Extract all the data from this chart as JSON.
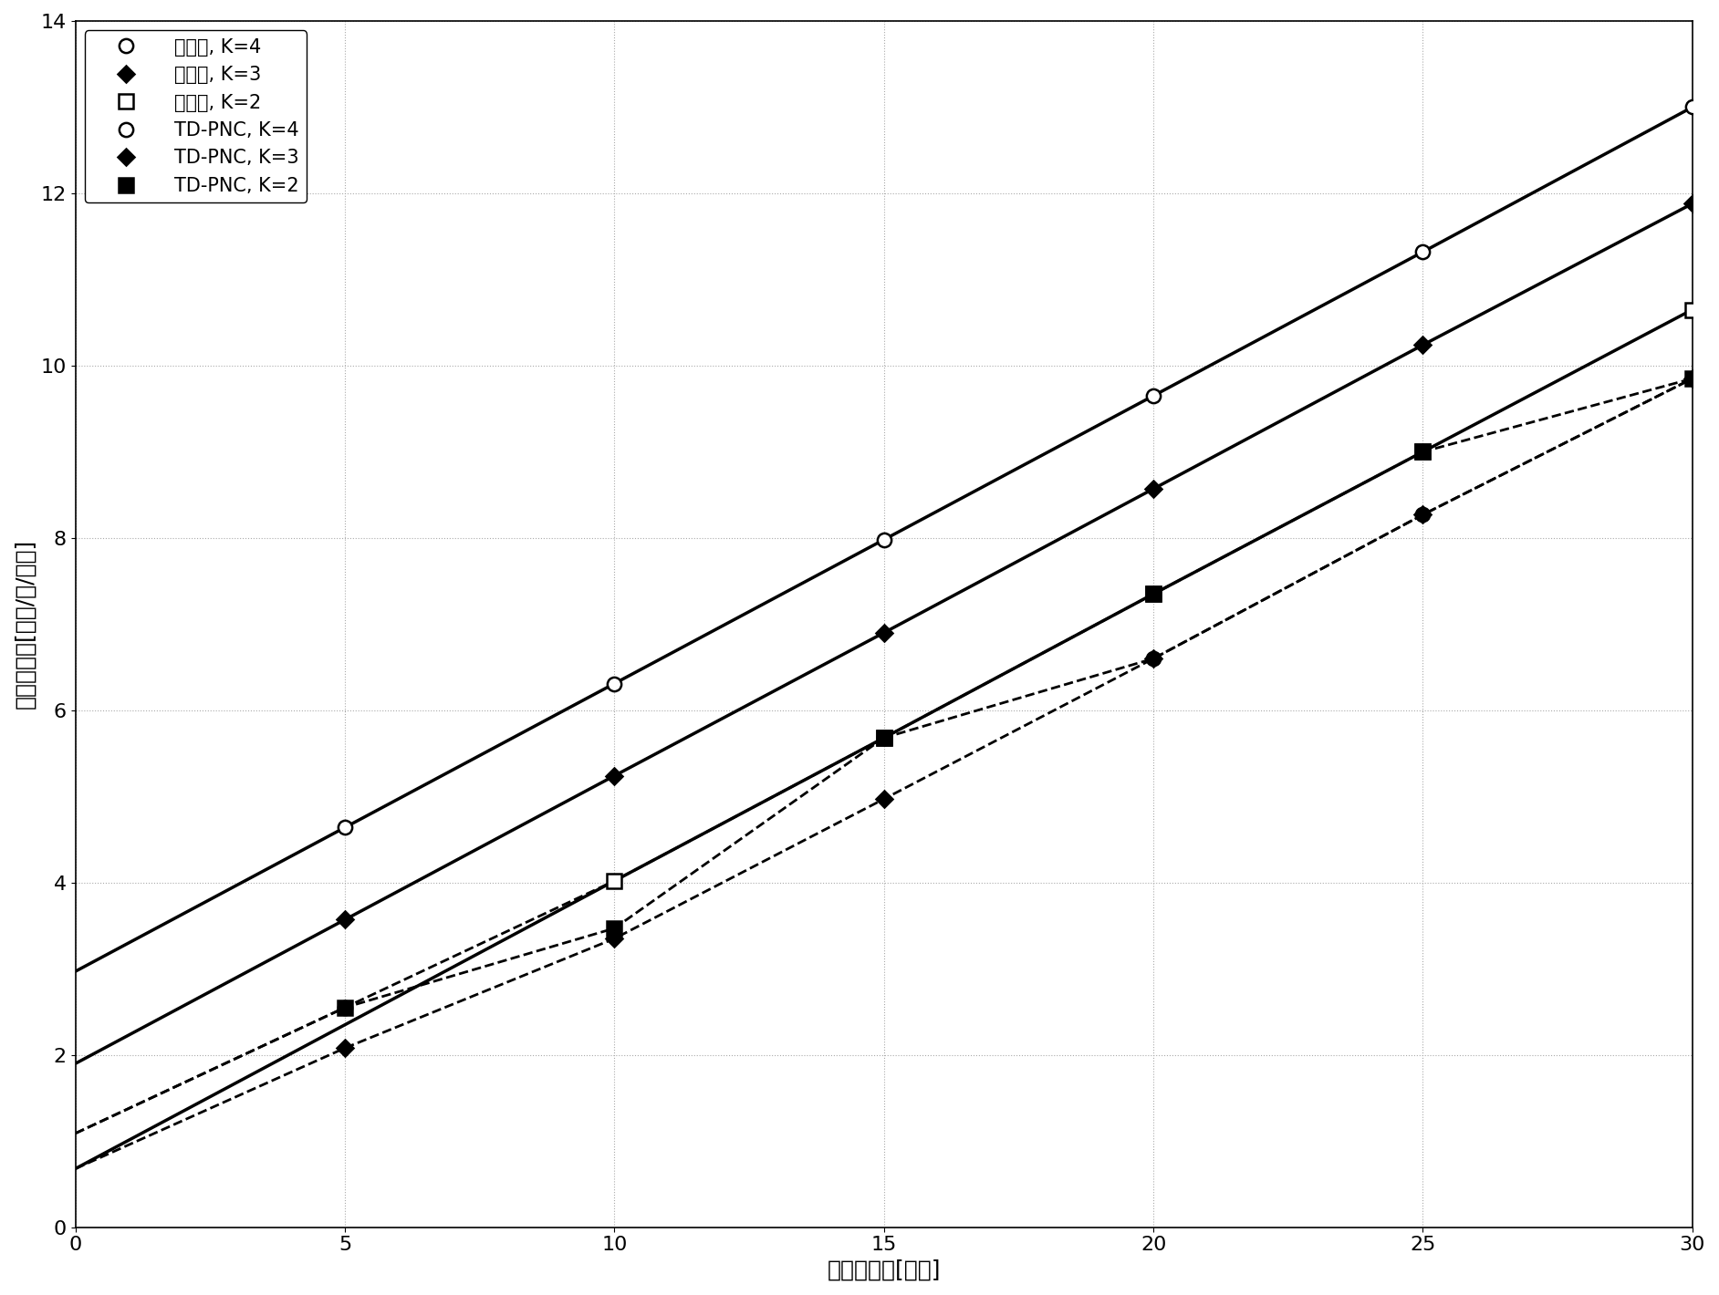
{
  "xlabel": "发射信噪比[分贝]",
  "ylabel": "平均和速率[比特/秒/赫兹]",
  "xlim": [
    0,
    30
  ],
  "ylim": [
    0,
    14
  ],
  "xticks": [
    0,
    5,
    10,
    15,
    20,
    25,
    30
  ],
  "yticks": [
    0,
    2,
    4,
    6,
    8,
    10,
    12,
    14
  ],
  "series": [
    {
      "label": "本发明, K=4",
      "ls": "solid",
      "marker": "o",
      "mfc": "white",
      "mec": "black",
      "lw": 2.5,
      "ms": 11,
      "line_x": [
        0,
        5,
        10,
        15,
        20,
        25,
        30
      ],
      "line_y": [
        2.97,
        4.64,
        6.31,
        7.98,
        9.65,
        11.32,
        13.0
      ],
      "mark_x": [
        5,
        10,
        15,
        20,
        25,
        30
      ],
      "mark_y": [
        4.64,
        6.31,
        7.98,
        9.65,
        11.32,
        13.0
      ]
    },
    {
      "label": "本发明, K=3",
      "ls": "solid",
      "marker": "D",
      "mfc": "black",
      "mec": "black",
      "lw": 2.5,
      "ms": 9,
      "line_x": [
        0,
        5,
        10,
        15,
        20,
        25,
        30
      ],
      "line_y": [
        1.9,
        3.57,
        5.24,
        6.9,
        8.57,
        10.24,
        11.88
      ],
      "mark_x": [
        5,
        10,
        15,
        20,
        25,
        30
      ],
      "mark_y": [
        3.57,
        5.24,
        6.9,
        8.57,
        10.24,
        11.88
      ]
    },
    {
      "label": "本发明, K=2",
      "ls": "solid",
      "marker": "s",
      "mfc": "white",
      "mec": "black",
      "lw": 2.5,
      "ms": 11,
      "line_x": [
        0,
        10,
        15,
        20,
        25,
        30
      ],
      "line_y": [
        0.68,
        4.02,
        5.68,
        7.35,
        9.0,
        10.65
      ],
      "mark_x": [
        10,
        15,
        20,
        25,
        30
      ],
      "mark_y": [
        4.02,
        5.68,
        7.35,
        9.0,
        10.65
      ]
    },
    {
      "label": "TD-PNC, K=4",
      "ls": "dashed",
      "marker": "o",
      "mfc": "white",
      "mec": "black",
      "lw": 2.0,
      "ms": 11,
      "line_x": [
        0,
        5,
        10,
        15,
        20,
        25,
        30
      ],
      "line_y": [
        1.09,
        2.55,
        4.02,
        5.68,
        6.6,
        8.27,
        9.85
      ],
      "mark_x": [
        5,
        15,
        20,
        25,
        30
      ],
      "mark_y": [
        2.55,
        5.68,
        6.6,
        8.27,
        9.85
      ]
    },
    {
      "label": "TD-PNC, K=3",
      "ls": "dashed",
      "marker": "D",
      "mfc": "black",
      "mec": "black",
      "lw": 2.0,
      "ms": 9,
      "line_x": [
        0,
        5,
        10,
        15,
        20,
        25,
        30
      ],
      "line_y": [
        0.68,
        2.08,
        3.35,
        4.97,
        6.6,
        8.27,
        9.85
      ],
      "mark_x": [
        5,
        10,
        15,
        20,
        25,
        30
      ],
      "mark_y": [
        2.08,
        3.35,
        4.97,
        6.6,
        8.27,
        9.85
      ]
    },
    {
      "label": "TD-PNC, K=2",
      "ls": "dashed",
      "marker": "s",
      "mfc": "black",
      "mec": "black",
      "lw": 2.0,
      "ms": 11,
      "line_x": [
        0,
        5,
        10,
        15,
        20,
        25,
        30
      ],
      "line_y": [
        1.09,
        2.55,
        3.47,
        5.68,
        7.35,
        9.0,
        9.85
      ],
      "mark_x": [
        5,
        10,
        15,
        20,
        25,
        30
      ],
      "mark_y": [
        2.55,
        3.47,
        5.68,
        7.35,
        9.0,
        9.85
      ]
    }
  ],
  "legend_fontsize": 15,
  "axis_label_fontsize": 18,
  "tick_fontsize": 16
}
